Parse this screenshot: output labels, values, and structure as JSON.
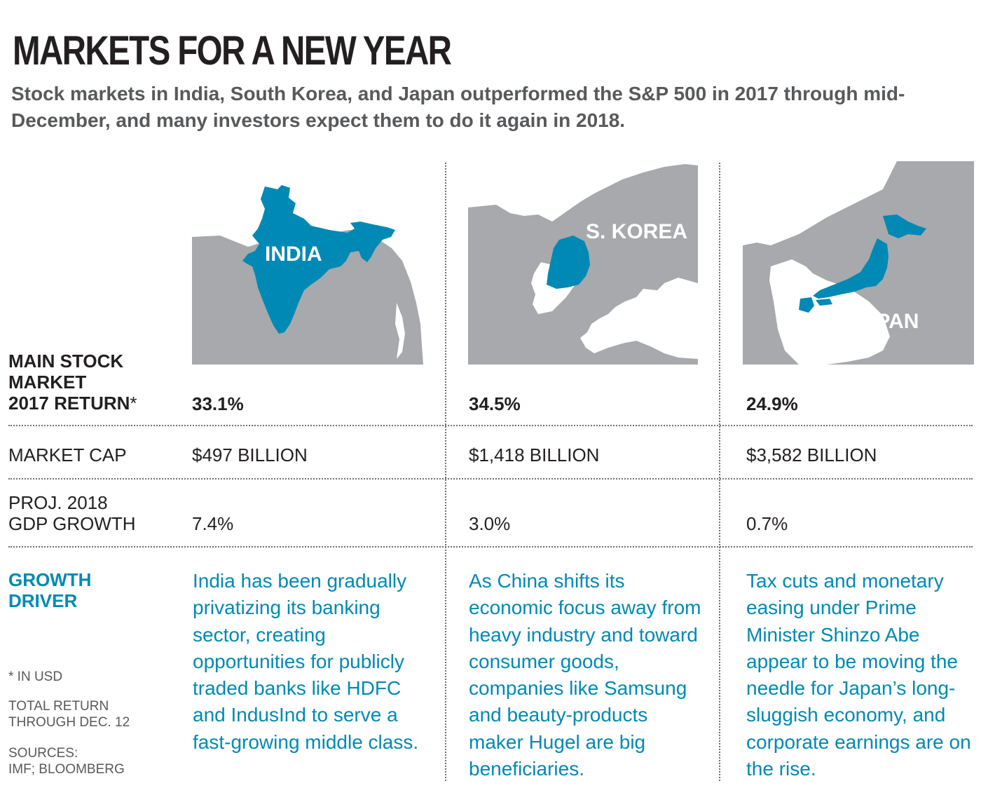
{
  "title": "MARKETS FOR A NEW YEAR",
  "subtitle": "Stock markets in India, South Korea, and Japan outperformed the S&P 500 in 2017 through mid-December, and many investors expect them to do it again in 2018.",
  "colors": {
    "accent": "#0089b4",
    "land": "#a7a9ac",
    "text": "#231f20",
    "muted": "#58595b"
  },
  "row_labels": {
    "return_line1": "MAIN STOCK",
    "return_line2": "MARKET",
    "return_line3": "2017 RETURN",
    "return_mark": "*",
    "market_cap": "MARKET CAP",
    "gdp_line1": "PROJ. 2018",
    "gdp_line2": "GDP GROWTH",
    "driver_line1": "GROWTH",
    "driver_line2": "DRIVER"
  },
  "countries": [
    {
      "map_label": "INDIA",
      "return": "33.1%",
      "market_cap": "$497 BILLION",
      "gdp_growth": "7.4%",
      "driver": "India has been gradually privatizing its banking sector, creating opportunities for publicly traded banks like HDFC and IndusInd to serve a fast-growing middle class."
    },
    {
      "map_label": "S. KOREA",
      "return": "34.5%",
      "market_cap": "$1,418 BILLION",
      "gdp_growth": "3.0%",
      "driver": "As China shifts its economic focus away from heavy industry and toward consumer goods, companies like Samsung and beauty-products maker Hugel are big beneficiaries."
    },
    {
      "map_label": "JAPAN",
      "return": "24.9%",
      "market_cap": "$3,582 BILLION",
      "gdp_growth": "0.7%",
      "driver": "Tax cuts and monetary easing under Prime Minister Shinzo Abe appear to be moving the needle for Japan’s long-sluggish economy, and corporate earnings are on the rise."
    }
  ],
  "notes": {
    "usd": "* IN USD",
    "total_return_line1": "TOTAL RETURN",
    "total_return_line2": "THROUGH DEC. 12",
    "sources_line1": "SOURCES:",
    "sources_line2": "IMF; BLOOMBERG"
  }
}
